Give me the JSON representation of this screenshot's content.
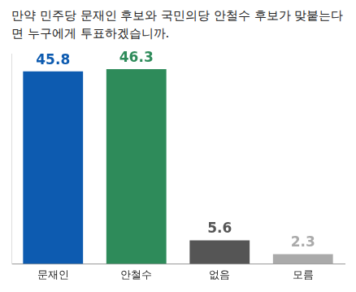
{
  "chart_data": {
    "type": "bar",
    "title": "만약 민주당 문재인 후보와 국민의당 안철수 후보가 맞붙는다면 누구에게 투표하겠습니까.",
    "categories": [
      "문재인",
      "안철수",
      "없음",
      "모름"
    ],
    "values": [
      45.8,
      46.3,
      5.6,
      2.3
    ],
    "colors": [
      "#0d5bb0",
      "#2e8b5a",
      "#555555",
      "#aaaaaa"
    ],
    "ylim": [
      0,
      50
    ],
    "grid": false,
    "data_labels": true,
    "tick_labels": "x"
  }
}
